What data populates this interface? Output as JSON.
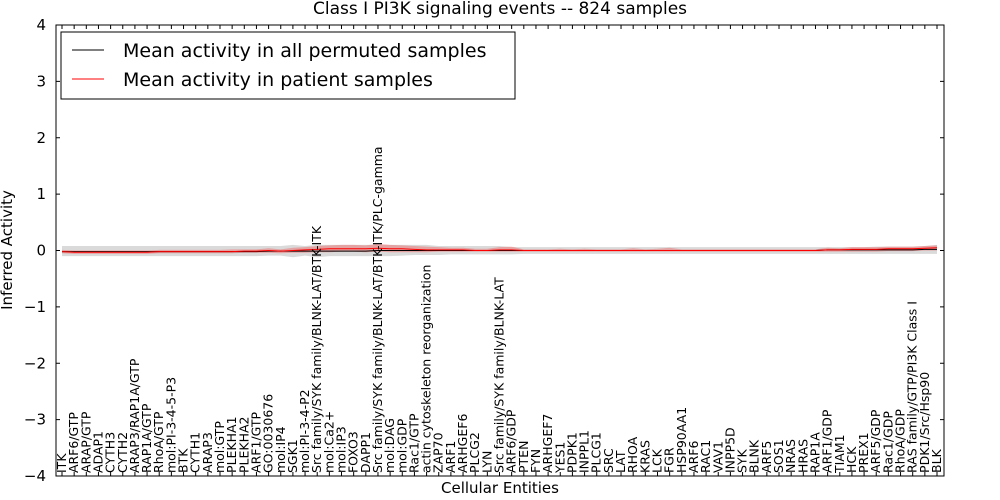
{
  "chart_data": {
    "type": "line",
    "title": "Class I PI3K signaling events -- 824 samples",
    "xlabel": "Cellular Entities",
    "ylabel": "Inferred Activity",
    "ylim": [
      -4,
      4
    ],
    "yticks": [
      "4",
      "3",
      "2",
      "1",
      "0",
      "−1",
      "−2",
      "−3",
      "−4"
    ],
    "ytick_values": [
      4,
      3,
      2,
      1,
      0,
      -1,
      -2,
      -3,
      -4
    ],
    "legend": {
      "position": "top-left",
      "entries": [
        {
          "label": "Mean activity in all permuted samples",
          "color": "#000000"
        },
        {
          "label": "Mean activity in patient samples",
          "color": "#ff0000"
        }
      ]
    },
    "categories": [
      "ITK",
      "ARF6/GTP",
      "ARAP/GTP",
      "ADAP1",
      "CYTH3",
      "CYTH2",
      "ARAP3/RAP1A/GTP",
      "RAP1A/GTP",
      "RhoA/GTP",
      "mol:PI-3-4-5-P3",
      "BTK",
      "CYTH1",
      "ARAP3",
      "mol:GTP",
      "PLEKHA1",
      "PLEKHA2",
      "ARF1/GTP",
      "GO:0030676",
      "mol:IP4",
      "SGK1",
      "mol:PI-3-4-P2",
      "Src family/SYK family/BLNK-LAT/BTK-ITK",
      "mol:Ca2+",
      "mol:IP3",
      "FOXO3",
      "DAPP1",
      "Src family/SYK family/BLNK-LAT/BTK-ITK/PLC-gamma",
      "mol:DAG",
      "mol:GDP",
      "Rac1/GTP",
      "actin cytoskeleton reorganization",
      "ZAP70",
      "ARF1",
      "ARHGEF6",
      "PLCG2",
      "LYN",
      "Src family/SYK family/BLNK-LAT",
      "ARF6/GDP",
      "PTEN",
      "FYN",
      "ARHGEF7",
      "YES1",
      "PDPK1",
      "INPPL1",
      "PLCG1",
      "SRC",
      "LAT",
      "RHOA",
      "KRAS",
      "LCK",
      "FGR",
      "HSP90AA1",
      "ARF6",
      "RAC1",
      "VAV1",
      "INPP5D",
      "SYK",
      "BLNK",
      "ARF5",
      "SOS1",
      "NRAS",
      "HRAS",
      "RAP1A",
      "ARF1/GDP",
      "TIAM1",
      "HCK",
      "PREX1",
      "ARF5/GDP",
      "Rac1/GDP",
      "RhoA/GDP",
      "RAS family/GTP/PI3K Class I",
      "PDK1/Src/Hsp90",
      "BLK"
    ],
    "series": [
      {
        "name": "Mean activity in all permuted samples",
        "color": "#000000",
        "values": [
          -0.02,
          -0.02,
          -0.02,
          -0.02,
          -0.02,
          -0.02,
          -0.02,
          -0.02,
          -0.02,
          -0.02,
          -0.02,
          -0.02,
          -0.02,
          -0.02,
          -0.02,
          -0.02,
          -0.02,
          -0.01,
          -0.01,
          -0.01,
          -0.01,
          -0.01,
          -0.01,
          -0.01,
          -0.01,
          -0.01,
          0,
          0,
          0,
          0,
          0,
          0,
          0,
          0,
          0,
          0,
          0,
          0,
          0,
          0,
          0,
          0,
          0,
          0,
          0,
          0,
          0,
          0,
          0,
          0,
          0,
          0,
          0,
          0,
          0,
          0,
          0,
          0,
          0,
          0,
          0,
          0,
          0,
          0.01,
          0.01,
          0.01,
          0.01,
          0.01,
          0.01,
          0.01,
          0.01,
          0.02,
          0.02
        ],
        "band_low": [
          -0.1,
          -0.1,
          -0.1,
          -0.1,
          -0.1,
          -0.1,
          -0.1,
          -0.1,
          -0.1,
          -0.1,
          -0.1,
          -0.1,
          -0.1,
          -0.1,
          -0.1,
          -0.1,
          -0.1,
          -0.09,
          -0.09,
          -0.12,
          -0.09,
          -0.12,
          -0.1,
          -0.1,
          -0.1,
          -0.1,
          -0.1,
          -0.1,
          -0.09,
          -0.08,
          -0.08,
          -0.08,
          -0.07,
          -0.07,
          -0.07,
          -0.07,
          -0.07,
          -0.07,
          -0.06,
          -0.06,
          -0.06,
          -0.06,
          -0.06,
          -0.06,
          -0.06,
          -0.06,
          -0.06,
          -0.06,
          -0.06,
          -0.06,
          -0.06,
          -0.06,
          -0.06,
          -0.06,
          -0.06,
          -0.06,
          -0.06,
          -0.06,
          -0.06,
          -0.06,
          -0.06,
          -0.06,
          -0.06,
          -0.06,
          -0.06,
          -0.06,
          -0.06,
          -0.06,
          -0.06,
          -0.06,
          -0.06,
          -0.06,
          -0.06
        ],
        "band_high": [
          0.08,
          0.08,
          0.08,
          0.08,
          0.08,
          0.08,
          0.08,
          0.08,
          0.08,
          0.08,
          0.08,
          0.08,
          0.08,
          0.08,
          0.08,
          0.08,
          0.08,
          0.08,
          0.08,
          0.1,
          0.08,
          0.1,
          0.1,
          0.1,
          0.1,
          0.1,
          0.1,
          0.1,
          0.1,
          0.1,
          0.1,
          0.08,
          0.08,
          0.08,
          0.08,
          0.08,
          0.08,
          0.06,
          0.06,
          0.06,
          0.06,
          0.06,
          0.06,
          0.06,
          0.06,
          0.06,
          0.06,
          0.06,
          0.06,
          0.06,
          0.06,
          0.06,
          0.06,
          0.06,
          0.06,
          0.06,
          0.06,
          0.06,
          0.06,
          0.06,
          0.06,
          0.06,
          0.06,
          0.06,
          0.06,
          0.06,
          0.06,
          0.07,
          0.07,
          0.07,
          0.07,
          0.08,
          0.1
        ]
      },
      {
        "name": "Mean activity in patient samples",
        "color": "#ff0000",
        "values": [
          -0.02,
          -0.03,
          -0.03,
          -0.03,
          -0.03,
          -0.03,
          -0.03,
          -0.03,
          -0.02,
          -0.02,
          -0.02,
          -0.02,
          -0.02,
          -0.02,
          -0.02,
          -0.01,
          -0.01,
          0,
          -0.01,
          0,
          0.01,
          0.02,
          0.03,
          0.03,
          0.03,
          0.03,
          0.04,
          0.03,
          0.03,
          0.02,
          0.01,
          0.01,
          0.01,
          0.01,
          0,
          0,
          0.01,
          0.01,
          0,
          0,
          0,
          0,
          0,
          0,
          0,
          0,
          0,
          0,
          0,
          0,
          0,
          0,
          0,
          0,
          0,
          0,
          0,
          0,
          0,
          0,
          0,
          0,
          0,
          0.01,
          0.01,
          0.02,
          0.02,
          0.02,
          0.03,
          0.03,
          0.03,
          0.04,
          0.05
        ],
        "band_low": [
          -0.05,
          -0.06,
          -0.06,
          -0.06,
          -0.06,
          -0.06,
          -0.06,
          -0.06,
          -0.05,
          -0.05,
          -0.05,
          -0.05,
          -0.05,
          -0.05,
          -0.05,
          -0.04,
          -0.04,
          -0.04,
          -0.05,
          -0.04,
          -0.04,
          -0.03,
          -0.03,
          -0.02,
          -0.02,
          -0.03,
          -0.02,
          -0.03,
          -0.03,
          -0.03,
          -0.03,
          -0.02,
          -0.02,
          -0.02,
          -0.02,
          -0.02,
          -0.02,
          -0.02,
          -0.02,
          -0.02,
          -0.02,
          -0.02,
          -0.02,
          -0.02,
          -0.02,
          -0.02,
          -0.02,
          -0.02,
          -0.02,
          -0.02,
          -0.02,
          -0.02,
          -0.02,
          -0.02,
          -0.02,
          -0.02,
          -0.02,
          -0.02,
          -0.02,
          -0.02,
          -0.02,
          -0.02,
          -0.02,
          -0.02,
          -0.02,
          -0.02,
          -0.02,
          -0.02,
          -0.01,
          -0.01,
          -0.01,
          0,
          0
        ],
        "band_high": [
          0.01,
          0,
          0,
          0,
          0,
          0,
          0,
          0,
          0.01,
          0.01,
          0.01,
          0.01,
          0.01,
          0.01,
          0.02,
          0.02,
          0.02,
          0.04,
          0.02,
          0.05,
          0.06,
          0.08,
          0.09,
          0.1,
          0.1,
          0.09,
          0.12,
          0.1,
          0.09,
          0.08,
          0.07,
          0.06,
          0.05,
          0.05,
          0.03,
          0.03,
          0.06,
          0.07,
          0.02,
          0.02,
          0.02,
          0.03,
          0.02,
          0.03,
          0.02,
          0.02,
          0.02,
          0.04,
          0.02,
          0.03,
          0.05,
          0.02,
          0.02,
          0.02,
          0.02,
          0.02,
          0.02,
          0.02,
          0.02,
          0.02,
          0.02,
          0.02,
          0.02,
          0.05,
          0.04,
          0.06,
          0.06,
          0.06,
          0.07,
          0.07,
          0.07,
          0.08,
          0.09
        ]
      }
    ]
  }
}
